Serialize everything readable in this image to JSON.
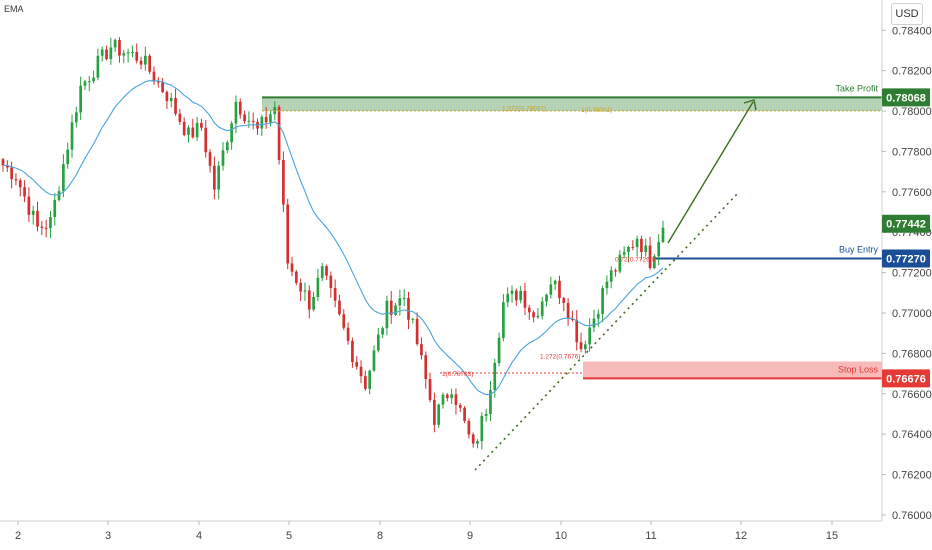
{
  "indicator_label": "EMA",
  "currency_label": "USD",
  "colors": {
    "bull": "#26a041",
    "bear": "#d32f2f",
    "ema": "#4aa3df",
    "take_profit": "#2e7d32",
    "buy_entry": "#1a4e96",
    "stop_loss": "#e53935",
    "current_price": "#2e7d32",
    "trendline": "#3a6e1e",
    "fib": "#c9a227"
  },
  "chart_data": {
    "type": "candlestick",
    "x_tick_labels": [
      "2",
      "3",
      "4",
      "5",
      "8",
      "9",
      "10",
      "11",
      "12",
      "15"
    ],
    "y_tick_labels": [
      "0.78400",
      "0.78200",
      "0.78000",
      "0.77800",
      "0.77600",
      "0.77400",
      "0.77200",
      "0.77000",
      "0.76800",
      "0.76600",
      "0.76400",
      "0.76200",
      "0.76000"
    ],
    "ylim": [
      0.7597,
      0.7855
    ],
    "levels": [
      {
        "name": "Take Profit",
        "price_label": "0.78068",
        "price": 0.78068,
        "role": "take_profit"
      },
      {
        "name": "Buy Entry",
        "price_label": "0.77270",
        "price": 0.7727,
        "role": "buy_entry"
      },
      {
        "name": "Stop Loss",
        "price_label": "0.76676",
        "price": 0.76676,
        "role": "stop_loss"
      }
    ],
    "current_price": {
      "price_label": "0.77442",
      "price": 0.77442
    },
    "fib_annotations": [
      {
        "text": "1.272(0.78007)",
        "price": 0.78007
      },
      {
        "text": "1(0.78001)",
        "price": 0.78001
      },
      {
        "text": "1.272(0.7676)",
        "price": 0.7676
      },
      {
        "text": "1(0.76703)",
        "price": 0.76703
      },
      {
        "text": "0.72(0.77260)",
        "price": 0.7726
      }
    ],
    "ohlc_segments": [
      {
        "from": 0.7775,
        "to": 0.7768,
        "bars": 4
      },
      {
        "from": 0.7768,
        "to": 0.7742,
        "bars": 5
      },
      {
        "from": 0.7742,
        "to": 0.7745,
        "bars": 3
      },
      {
        "from": 0.7745,
        "to": 0.7812,
        "bars": 7
      },
      {
        "from": 0.7812,
        "to": 0.7832,
        "bars": 7
      },
      {
        "from": 0.7832,
        "to": 0.7826,
        "bars": 7
      },
      {
        "from": 0.7826,
        "to": 0.7808,
        "bars": 6
      },
      {
        "from": 0.7808,
        "to": 0.7788,
        "bars": 5
      },
      {
        "from": 0.7788,
        "to": 0.7792,
        "bars": 3
      },
      {
        "from": 0.7792,
        "to": 0.7762,
        "bars": 3
      },
      {
        "from": 0.7762,
        "to": 0.7805,
        "bars": 5
      },
      {
        "from": 0.7805,
        "to": 0.779,
        "bars": 5
      },
      {
        "from": 0.779,
        "to": 0.7802,
        "bars": 4
      },
      {
        "from": 0.7802,
        "to": 0.7725,
        "bars": 3
      },
      {
        "from": 0.7725,
        "to": 0.7705,
        "bars": 5
      },
      {
        "from": 0.7705,
        "to": 0.772,
        "bars": 3
      },
      {
        "from": 0.772,
        "to": 0.768,
        "bars": 7
      },
      {
        "from": 0.768,
        "to": 0.7665,
        "bars": 3
      },
      {
        "from": 0.7665,
        "to": 0.7702,
        "bars": 5
      },
      {
        "from": 0.7702,
        "to": 0.7708,
        "bars": 4
      },
      {
        "from": 0.7708,
        "to": 0.7685,
        "bars": 3
      },
      {
        "from": 0.7685,
        "to": 0.7648,
        "bars": 4
      },
      {
        "from": 0.7648,
        "to": 0.7664,
        "bars": 4
      },
      {
        "from": 0.7664,
        "to": 0.7632,
        "bars": 5
      },
      {
        "from": 0.7632,
        "to": 0.7653,
        "bars": 3
      },
      {
        "from": 0.7653,
        "to": 0.7705,
        "bars": 4
      },
      {
        "from": 0.7705,
        "to": 0.7711,
        "bars": 4
      },
      {
        "from": 0.7711,
        "to": 0.7698,
        "bars": 3
      },
      {
        "from": 0.7698,
        "to": 0.7716,
        "bars": 4
      },
      {
        "from": 0.7716,
        "to": 0.7708,
        "bars": 3
      },
      {
        "from": 0.7708,
        "to": 0.7683,
        "bars": 4
      },
      {
        "from": 0.7683,
        "to": 0.7698,
        "bars": 3
      },
      {
        "from": 0.7698,
        "to": 0.7716,
        "bars": 3
      },
      {
        "from": 0.7716,
        "to": 0.7725,
        "bars": 3
      },
      {
        "from": 0.7725,
        "to": 0.7738,
        "bars": 4
      },
      {
        "from": 0.7738,
        "to": 0.7726,
        "bars": 3
      },
      {
        "from": 0.7726,
        "to": 0.7744,
        "bars": 3
      }
    ]
  }
}
